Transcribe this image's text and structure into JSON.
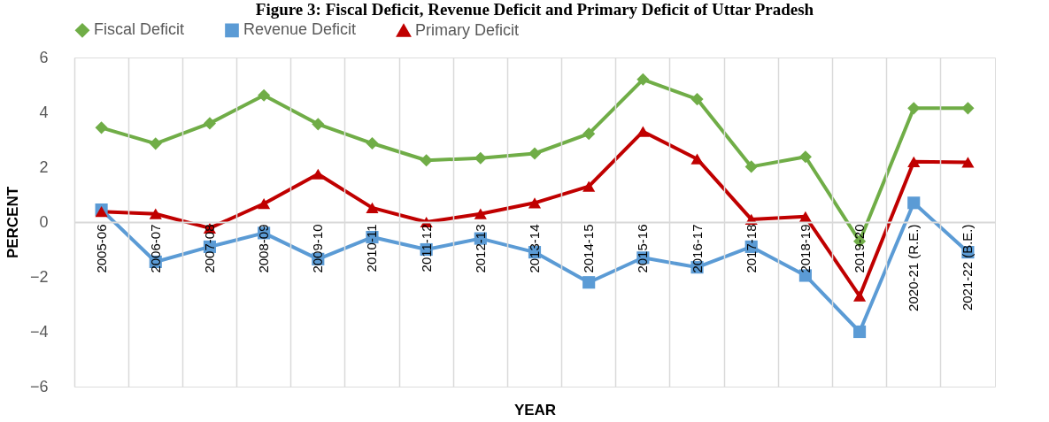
{
  "chart_data": {
    "type": "line",
    "title": "Figure 3: Fiscal Deficit, Revenue Deficit and Primary Deficit of Uttar Pradesh",
    "xlabel": "YEAR",
    "ylabel": "PERCENT",
    "categories": [
      "2005-06",
      "2006-07",
      "2007-08",
      "2008-09",
      "2009-10",
      "2010-11",
      "2011-12",
      "2012-13",
      "2013-14",
      "2014-15",
      "2015-16",
      "2016-17",
      "2017-18",
      "2018-19",
      "2019-20",
      "2020-21 (R.E.)",
      "2021-22 (B.E.)"
    ],
    "series": [
      {
        "name": "Fiscal Deficit",
        "color": "#70ad47",
        "marker": "diamond",
        "values": [
          3.44,
          2.86,
          3.6,
          4.62,
          3.57,
          2.87,
          2.25,
          2.33,
          2.5,
          3.22,
          5.2,
          4.48,
          2.02,
          2.38,
          -0.7,
          4.15,
          4.15
        ]
      },
      {
        "name": "Revenue Deficit",
        "color": "#5b9bd5",
        "marker": "square",
        "values": [
          0.45,
          -1.45,
          -0.9,
          -0.4,
          -1.35,
          -0.55,
          -1.0,
          -0.6,
          -1.1,
          -2.2,
          -1.3,
          -1.65,
          -0.9,
          -1.95,
          -4.0,
          0.7,
          -1.1
        ]
      },
      {
        "name": "Primary Deficit",
        "color": "#c00000",
        "marker": "triangle",
        "values": [
          0.38,
          0.3,
          -0.22,
          0.67,
          1.75,
          0.52,
          0.0,
          0.3,
          0.7,
          1.3,
          3.3,
          2.3,
          0.1,
          0.2,
          -2.7,
          2.2,
          2.18
        ]
      }
    ],
    "ylim": [
      -6,
      6
    ],
    "yticks": [
      -6,
      -4,
      -2,
      0,
      2,
      4,
      6
    ],
    "grid": "x",
    "legend": "top",
    "line_style": "solid"
  }
}
